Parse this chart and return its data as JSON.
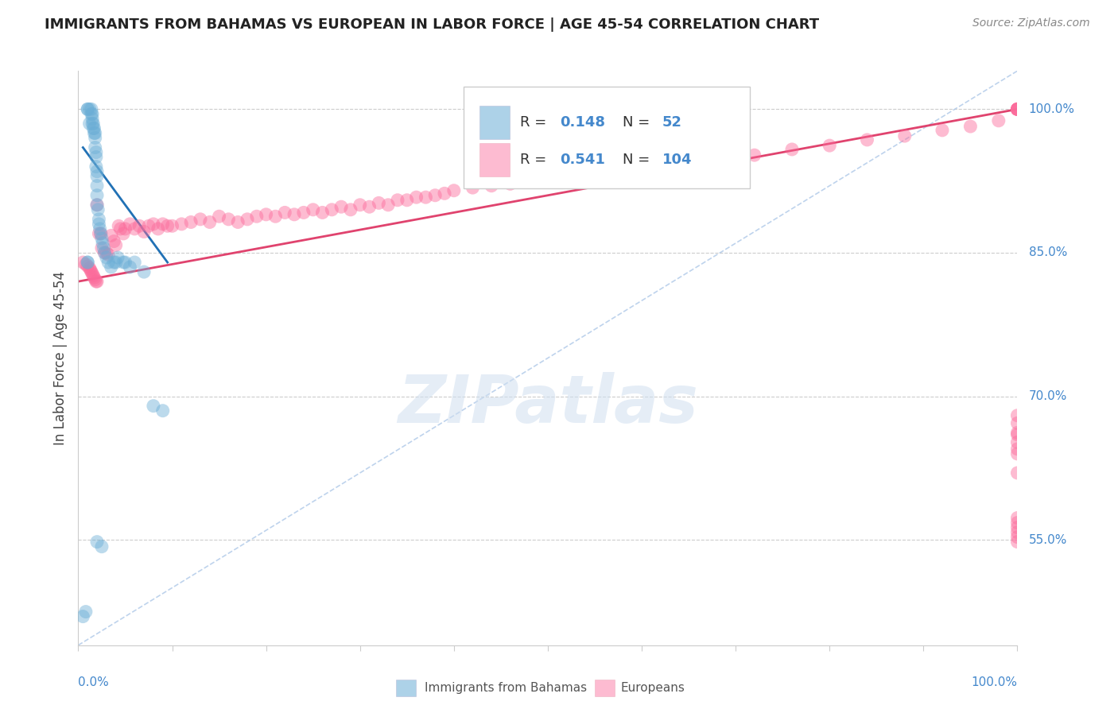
{
  "title": "IMMIGRANTS FROM BAHAMAS VS EUROPEAN IN LABOR FORCE | AGE 45-54 CORRELATION CHART",
  "source": "Source: ZipAtlas.com",
  "ylabel": "In Labor Force | Age 45-54",
  "ytick_labels": [
    "55.0%",
    "70.0%",
    "85.0%",
    "100.0%"
  ],
  "ytick_values": [
    0.55,
    0.7,
    0.85,
    1.0
  ],
  "xlim": [
    0.0,
    1.0
  ],
  "ylim": [
    0.44,
    1.04
  ],
  "watermark_text": "ZIPatlas",
  "blue_R": "0.148",
  "blue_N": "52",
  "pink_R": "0.541",
  "pink_N": "104",
  "blue_color": "#6baed6",
  "blue_line_color": "#2171b5",
  "pink_color": "#fb6a9a",
  "pink_line_color": "#e0436e",
  "diag_color": "#aec8e8",
  "axis_label_color": "#4488cc",
  "title_color": "#222222",
  "source_color": "#888888",
  "bg_color": "#ffffff",
  "grid_color": "#cccccc",
  "blue_scatter_x": [
    0.005,
    0.008,
    0.01,
    0.01,
    0.012,
    0.012,
    0.014,
    0.014,
    0.015,
    0.015,
    0.015,
    0.016,
    0.016,
    0.017,
    0.017,
    0.018,
    0.018,
    0.018,
    0.019,
    0.019,
    0.019,
    0.02,
    0.02,
    0.02,
    0.02,
    0.02,
    0.021,
    0.022,
    0.022,
    0.023,
    0.024,
    0.025,
    0.026,
    0.027,
    0.028,
    0.03,
    0.032,
    0.035,
    0.038,
    0.04,
    0.042,
    0.048,
    0.05,
    0.055,
    0.06,
    0.07,
    0.08,
    0.09,
    0.01,
    0.01,
    0.02,
    0.025
  ],
  "blue_scatter_y": [
    0.47,
    0.475,
    1.0,
    1.0,
    1.0,
    0.985,
    1.0,
    0.995,
    0.995,
    0.99,
    0.985,
    0.985,
    0.98,
    0.98,
    0.975,
    0.975,
    0.97,
    0.96,
    0.955,
    0.95,
    0.94,
    0.935,
    0.93,
    0.92,
    0.91,
    0.9,
    0.895,
    0.885,
    0.88,
    0.875,
    0.87,
    0.865,
    0.86,
    0.855,
    0.85,
    0.845,
    0.84,
    0.835,
    0.84,
    0.84,
    0.845,
    0.84,
    0.84,
    0.835,
    0.84,
    0.83,
    0.69,
    0.685,
    0.84,
    0.84,
    0.548,
    0.543
  ],
  "pink_scatter_x": [
    0.005,
    0.008,
    0.01,
    0.012,
    0.013,
    0.014,
    0.015,
    0.016,
    0.017,
    0.018,
    0.019,
    0.02,
    0.02,
    0.022,
    0.024,
    0.025,
    0.028,
    0.03,
    0.032,
    0.035,
    0.038,
    0.04,
    0.043,
    0.045,
    0.048,
    0.05,
    0.055,
    0.06,
    0.065,
    0.07,
    0.075,
    0.08,
    0.085,
    0.09,
    0.095,
    0.1,
    0.11,
    0.12,
    0.13,
    0.14,
    0.15,
    0.16,
    0.17,
    0.18,
    0.19,
    0.2,
    0.21,
    0.22,
    0.23,
    0.24,
    0.25,
    0.26,
    0.27,
    0.28,
    0.29,
    0.3,
    0.31,
    0.32,
    0.33,
    0.34,
    0.35,
    0.36,
    0.37,
    0.38,
    0.39,
    0.4,
    0.42,
    0.44,
    0.46,
    0.48,
    0.5,
    0.53,
    0.56,
    0.6,
    0.64,
    0.68,
    0.72,
    0.76,
    0.8,
    0.84,
    0.88,
    0.92,
    0.95,
    0.98,
    1.0,
    1.0,
    1.0,
    1.0,
    1.0,
    1.0,
    1.0,
    1.0,
    1.0,
    1.0,
    1.0,
    1.0,
    1.0,
    1.0,
    1.0,
    1.0,
    1.0,
    1.0,
    1.0,
    1.0
  ],
  "pink_scatter_y": [
    0.84,
    0.838,
    0.836,
    0.834,
    0.832,
    0.83,
    0.828,
    0.826,
    0.824,
    0.822,
    0.82,
    0.9,
    0.82,
    0.87,
    0.87,
    0.855,
    0.85,
    0.85,
    0.848,
    0.868,
    0.862,
    0.858,
    0.878,
    0.875,
    0.87,
    0.875,
    0.88,
    0.875,
    0.878,
    0.872,
    0.878,
    0.88,
    0.875,
    0.88,
    0.878,
    0.878,
    0.88,
    0.882,
    0.885,
    0.882,
    0.888,
    0.885,
    0.882,
    0.885,
    0.888,
    0.89,
    0.888,
    0.892,
    0.89,
    0.892,
    0.895,
    0.892,
    0.895,
    0.898,
    0.895,
    0.9,
    0.898,
    0.902,
    0.9,
    0.905,
    0.905,
    0.908,
    0.908,
    0.91,
    0.912,
    0.915,
    0.918,
    0.92,
    0.922,
    0.925,
    0.928,
    0.932,
    0.935,
    0.94,
    0.942,
    0.948,
    0.952,
    0.958,
    0.962,
    0.968,
    0.972,
    0.978,
    0.982,
    0.988,
    1.0,
    1.0,
    1.0,
    1.0,
    1.0,
    1.0,
    0.548,
    0.553,
    0.558,
    0.563,
    0.568,
    0.573,
    0.62,
    0.66,
    0.64,
    0.645,
    0.652,
    0.662,
    0.672,
    0.68
  ],
  "blue_line_x": [
    0.005,
    0.095
  ],
  "blue_line_y": [
    0.96,
    0.84
  ],
  "pink_line_x": [
    0.0,
    1.0
  ],
  "pink_line_y": [
    0.82,
    1.0
  ],
  "diag_line_x": [
    0.0,
    1.0
  ],
  "diag_line_y": [
    0.44,
    1.04
  ]
}
